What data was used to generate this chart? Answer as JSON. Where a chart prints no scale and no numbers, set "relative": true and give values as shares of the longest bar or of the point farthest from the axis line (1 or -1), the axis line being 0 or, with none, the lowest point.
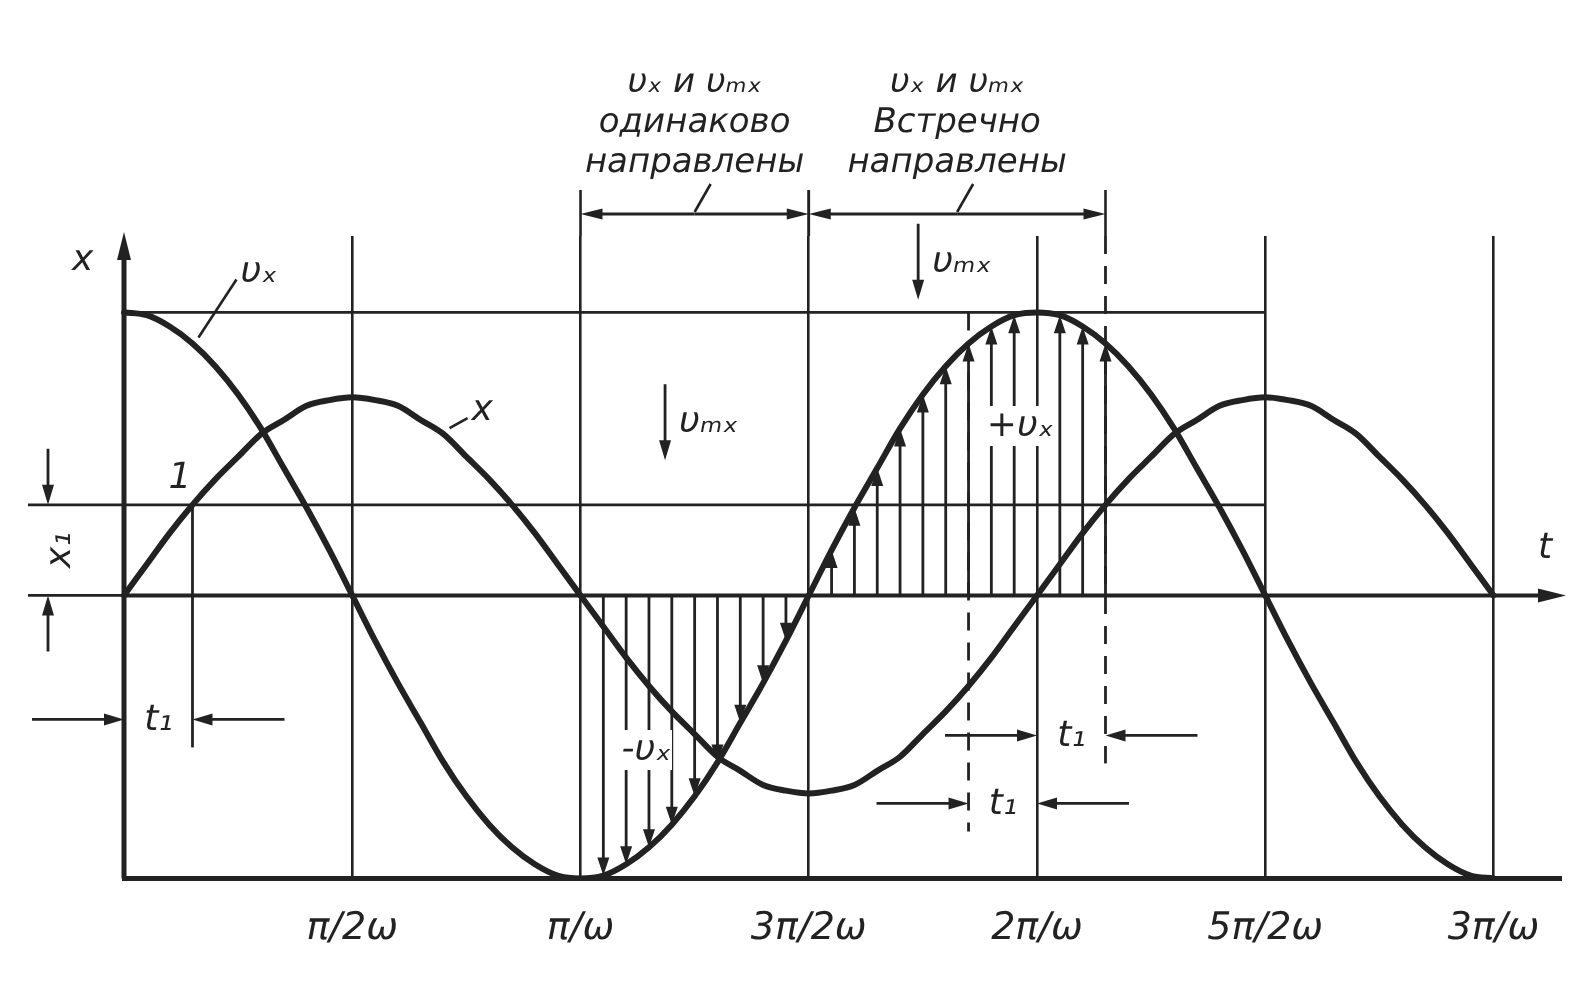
{
  "chart_data": {
    "type": "line",
    "xlabel": "t",
    "ylabel": "x",
    "relative": true,
    "grid": "x",
    "marker": "none",
    "categories": [
      null,
      null,
      null,
      null,
      null,
      null,
      null,
      null,
      null,
      null,
      "π/2ω",
      null,
      null,
      null,
      null,
      null,
      null,
      null,
      null,
      null,
      "π/ω",
      null,
      null,
      null,
      null,
      null,
      null,
      null,
      null,
      null,
      "3π/2ω",
      null,
      null,
      null,
      null,
      null,
      null,
      null,
      null,
      null,
      "2π/ω",
      null,
      null,
      null,
      null,
      null,
      null,
      null,
      null,
      null,
      "5π/2ω",
      null,
      null,
      null,
      null,
      null,
      null,
      null,
      null,
      null,
      "3π/ω",
      null,
      null,
      null
    ],
    "series": [
      {
        "name": "υₓ",
        "color": "#222222",
        "values": [
          1,
          0.99,
          0.95,
          0.89,
          0.81,
          0.71,
          0.59,
          0.45,
          0.31,
          0.16,
          0,
          -0.16,
          -0.31,
          -0.45,
          -0.59,
          -0.71,
          -0.81,
          -0.89,
          -0.95,
          -0.99,
          -1,
          -0.99,
          -0.95,
          -0.89,
          -0.81,
          -0.71,
          -0.59,
          -0.45,
          -0.31,
          -0.16,
          0,
          0.16,
          0.31,
          0.45,
          0.59,
          0.71,
          0.81,
          0.89,
          0.95,
          0.99,
          1,
          0.99,
          0.95,
          0.89,
          0.81,
          0.71,
          0.59,
          0.45,
          0.31,
          0.16,
          0,
          -0.16,
          -0.31,
          -0.45,
          -0.59,
          -0.71,
          -0.81,
          -0.89,
          -0.95,
          -0.99,
          -1,
          null,
          null,
          null
        ]
      },
      {
        "name": "x",
        "color": "#222222",
        "values": [
          0,
          0.11,
          0.22,
          0.32,
          0.41,
          0.49,
          0.57,
          0.62,
          0.67,
          0.69,
          0.7,
          0.69,
          0.67,
          0.62,
          0.57,
          0.49,
          0.41,
          0.32,
          0.22,
          0.11,
          0,
          -0.11,
          -0.22,
          -0.32,
          -0.41,
          -0.49,
          -0.57,
          -0.62,
          -0.67,
          -0.69,
          -0.7,
          -0.69,
          -0.67,
          -0.62,
          -0.57,
          -0.49,
          -0.41,
          -0.32,
          -0.22,
          -0.11,
          0,
          0.11,
          0.22,
          0.32,
          0.41,
          0.49,
          0.57,
          0.62,
          0.67,
          0.69,
          0.7,
          0.69,
          0.67,
          0.62,
          0.57,
          0.49,
          0.41,
          0.32,
          0.22,
          0.11,
          0,
          null,
          null,
          null
        ]
      }
    ],
    "ref_lines": [
      {
        "axis": "y",
        "value": 1
      },
      {
        "axis": "y",
        "value": 0.32
      }
    ],
    "annotations": [
      "1",
      "υₘₓ",
      "υₘₓ",
      "-υₓ",
      "+υₓ",
      "t₁",
      "t₁",
      "t₁",
      "x₁",
      "υₓ и υₘₓ одинаково направлены",
      "υₓ и υₘₓ Встречно направлены"
    ]
  }
}
